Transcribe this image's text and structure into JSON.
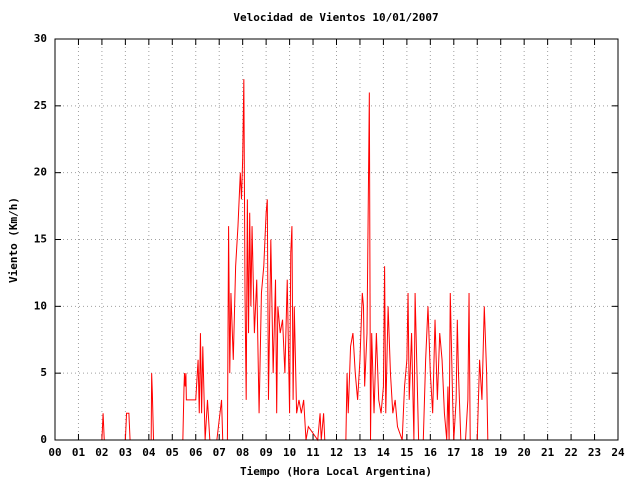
{
  "chart_data": {
    "type": "line",
    "title": "Velocidad de Vientos 10/01/2007",
    "xlabel": "Tiempo (Hora Local Argentina)",
    "ylabel": "Viento (Km/h)",
    "x": [
      0,
      2.0,
      2.05,
      2.1,
      3.0,
      3.05,
      3.15,
      3.2,
      4.1,
      4.12,
      4.15,
      4.2,
      5.45,
      5.5,
      5.52,
      5.55,
      5.58,
      5.6,
      6.0,
      6.1,
      6.15,
      6.2,
      6.25,
      6.3,
      6.4,
      6.5,
      6.6,
      6.9,
      7.1,
      7.15,
      7.35,
      7.4,
      7.45,
      7.5,
      7.6,
      7.7,
      7.8,
      7.9,
      7.95,
      8.0,
      8.05,
      8.1,
      8.15,
      8.2,
      8.25,
      8.3,
      8.35,
      8.4,
      8.5,
      8.6,
      8.7,
      8.8,
      8.9,
      9.0,
      9.05,
      9.1,
      9.2,
      9.3,
      9.4,
      9.45,
      9.5,
      9.6,
      9.7,
      9.8,
      9.9,
      10.0,
      10.05,
      10.1,
      10.15,
      10.2,
      10.3,
      10.4,
      10.5,
      10.6,
      10.7,
      10.8,
      11.2,
      11.3,
      11.35,
      11.45,
      11.5,
      12.4,
      12.45,
      12.5,
      12.6,
      12.7,
      12.8,
      12.9,
      13.0,
      13.1,
      13.15,
      13.2,
      13.3,
      13.4,
      13.45,
      13.5,
      13.6,
      13.7,
      13.8,
      13.9,
      14.0,
      14.05,
      14.1,
      14.2,
      14.3,
      14.4,
      14.5,
      14.6,
      14.8,
      14.9,
      15.0,
      15.05,
      15.1,
      15.2,
      15.3,
      15.35,
      15.5,
      15.7,
      15.8,
      15.9,
      16.0,
      16.1,
      16.2,
      16.3,
      16.4,
      16.5,
      16.6,
      16.7,
      16.75,
      16.8,
      16.85,
      16.95,
      17.0,
      17.1,
      17.15,
      17.2,
      17.3,
      17.5,
      17.6,
      17.65,
      17.7,
      18.0,
      18.1,
      18.2,
      18.3,
      18.4,
      18.45
    ],
    "series": [
      {
        "color": "#ff0000",
        "values": [
          0,
          0,
          2,
          0,
          0,
          2,
          2,
          0,
          0,
          5,
          3.5,
          0,
          0,
          4,
          5,
          4,
          5,
          3,
          3,
          6,
          2,
          8,
          2,
          7,
          0,
          3,
          0,
          0,
          3,
          0,
          0,
          16,
          5,
          11,
          6,
          13,
          16,
          20,
          18,
          21,
          27,
          11,
          3,
          18,
          8,
          17,
          10,
          16,
          8,
          12,
          2,
          11,
          13,
          17,
          18,
          3,
          15,
          5,
          12,
          2,
          10,
          8,
          9,
          5,
          12,
          2,
          14,
          16,
          3,
          10,
          2,
          3,
          2,
          3,
          0,
          1,
          0,
          2,
          0,
          2,
          0,
          0,
          5,
          2,
          7,
          8,
          5,
          3,
          6,
          11,
          10,
          4,
          8,
          26,
          0,
          8,
          2,
          8,
          3,
          2,
          4,
          13,
          2,
          10,
          5,
          2,
          3,
          1,
          0,
          4,
          6,
          11,
          3,
          8,
          0,
          11,
          0,
          0,
          6,
          10,
          5,
          2,
          9,
          3,
          8,
          6,
          2,
          0,
          4,
          0,
          11,
          3,
          0,
          3,
          9,
          5,
          0,
          0,
          3,
          11,
          0,
          0,
          6,
          3,
          10,
          5,
          0
        ]
      }
    ],
    "xlim": [
      0,
      24
    ],
    "ylim": [
      0,
      30
    ],
    "xticks": [
      {
        "value": 0,
        "label": "00"
      },
      {
        "value": 1,
        "label": "01"
      },
      {
        "value": 2,
        "label": "02"
      },
      {
        "value": 3,
        "label": "03"
      },
      {
        "value": 4,
        "label": "04"
      },
      {
        "value": 5,
        "label": "05"
      },
      {
        "value": 6,
        "label": "06"
      },
      {
        "value": 7,
        "label": "07"
      },
      {
        "value": 8,
        "label": "08"
      },
      {
        "value": 9,
        "label": "09"
      },
      10,
      11,
      12,
      13,
      14,
      15,
      16,
      17,
      18,
      19,
      20,
      21,
      22,
      23,
      24
    ],
    "yticks": [
      0,
      5,
      10,
      15,
      20,
      25,
      30
    ],
    "grid": true
  }
}
